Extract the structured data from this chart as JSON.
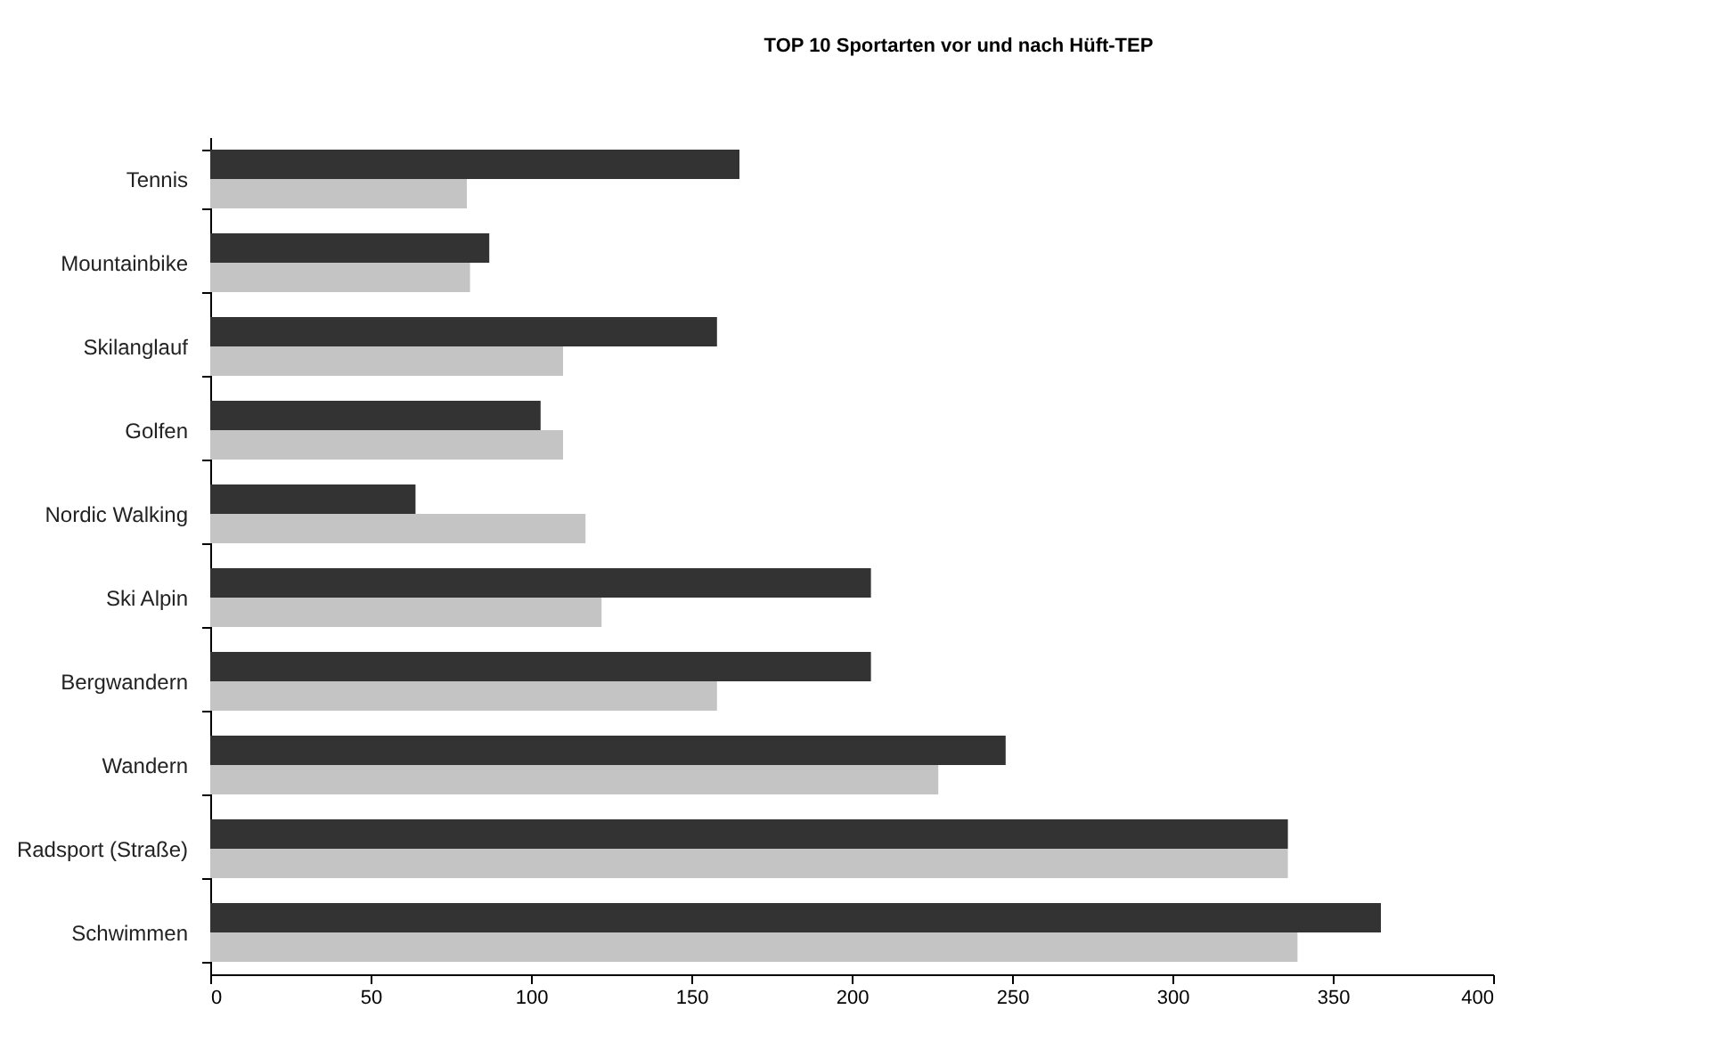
{
  "chart_data": {
    "type": "bar",
    "orientation": "horizontal",
    "title": "TOP 10 Sportarten vor und nach Hüft-TEP",
    "categories": [
      "Tennis",
      "Mountainbike",
      "Skilanglauf",
      "Golfen",
      "Nordic Walking",
      "Ski Alpin",
      "Bergwandern",
      "Wandern",
      "Radsport (Straße)",
      "Schwimmen"
    ],
    "series": [
      {
        "color": "#333333",
        "values": [
          165,
          87,
          158,
          103,
          64,
          206,
          206,
          248,
          336,
          365
        ]
      },
      {
        "color": "#c4c4c4",
        "values": [
          80,
          81,
          110,
          110,
          117,
          122,
          158,
          227,
          336,
          339
        ]
      }
    ],
    "xlim": [
      0,
      400
    ],
    "xticks": [
      0,
      50,
      100,
      150,
      200,
      250,
      300,
      350,
      400
    ],
    "grid": false
  }
}
